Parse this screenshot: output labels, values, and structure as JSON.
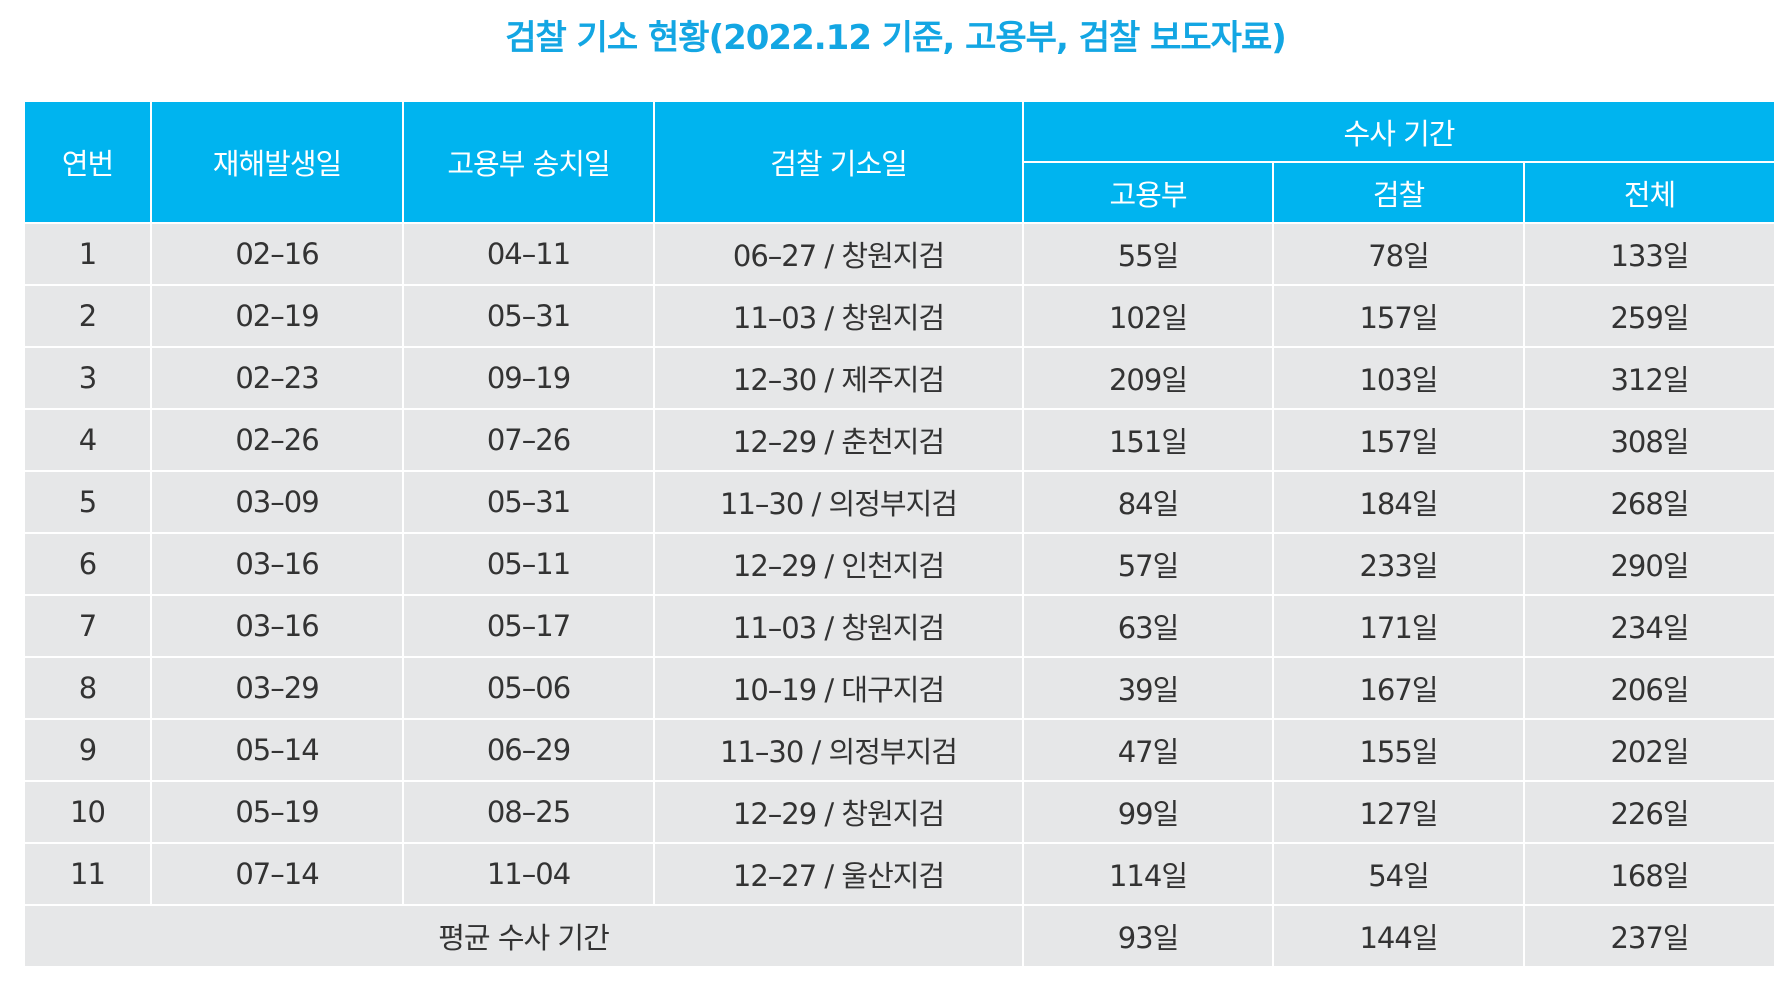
{
  "title": "검찰 기소 현황(2022.12 기준, 고용부, 검찰 보도자료)",
  "table": {
    "headers": [
      "연번",
      "재해발생일",
      "고용부 송치일",
      "검찰 기소일",
      "수사 기간"
    ],
    "subheaders": [
      "고용부",
      "검찰",
      "전체"
    ],
    "rows": [
      [
        "1",
        "02–16",
        "04–11",
        "06–27 / 창원지검",
        "55일",
        "78일",
        "133일"
      ],
      [
        "2",
        "02–19",
        "05–31",
        "11–03 / 창원지검",
        "102일",
        "157일",
        "259일"
      ],
      [
        "3",
        "02–23",
        "09–19",
        "12–30 / 제주지검",
        "209일",
        "103일",
        "312일"
      ],
      [
        "4",
        "02–26",
        "07–26",
        "12–29 / 춘천지검",
        "151일",
        "157일",
        "308일"
      ],
      [
        "5",
        "03–09",
        "05–31",
        "11–30 / 의정부지검",
        "84일",
        "184일",
        "268일"
      ],
      [
        "6",
        "03–16",
        "05–11",
        "12–29 / 인천지검",
        "57일",
        "233일",
        "290일"
      ],
      [
        "7",
        "03–16",
        "05–17",
        "11–03 / 창원지검",
        "63일",
        "171일",
        "234일"
      ],
      [
        "8",
        "03–29",
        "05–06",
        "10–19 / 대구지검",
        "39일",
        "167일",
        "206일"
      ],
      [
        "9",
        "05–14",
        "06–29",
        "11–30 / 의정부지검",
        "47일",
        "155일",
        "202일"
      ],
      [
        "10",
        "05–19",
        "08–25",
        "12–29 / 창원지검",
        "99일",
        "127일",
        "226일"
      ],
      [
        "11",
        "07–14",
        "11–04",
        "12–27 / 울산지검",
        "114일",
        "54일",
        "168일"
      ]
    ],
    "footer": [
      "평균 수사 기간",
      "93일",
      "144일",
      "237일"
    ]
  }
}
